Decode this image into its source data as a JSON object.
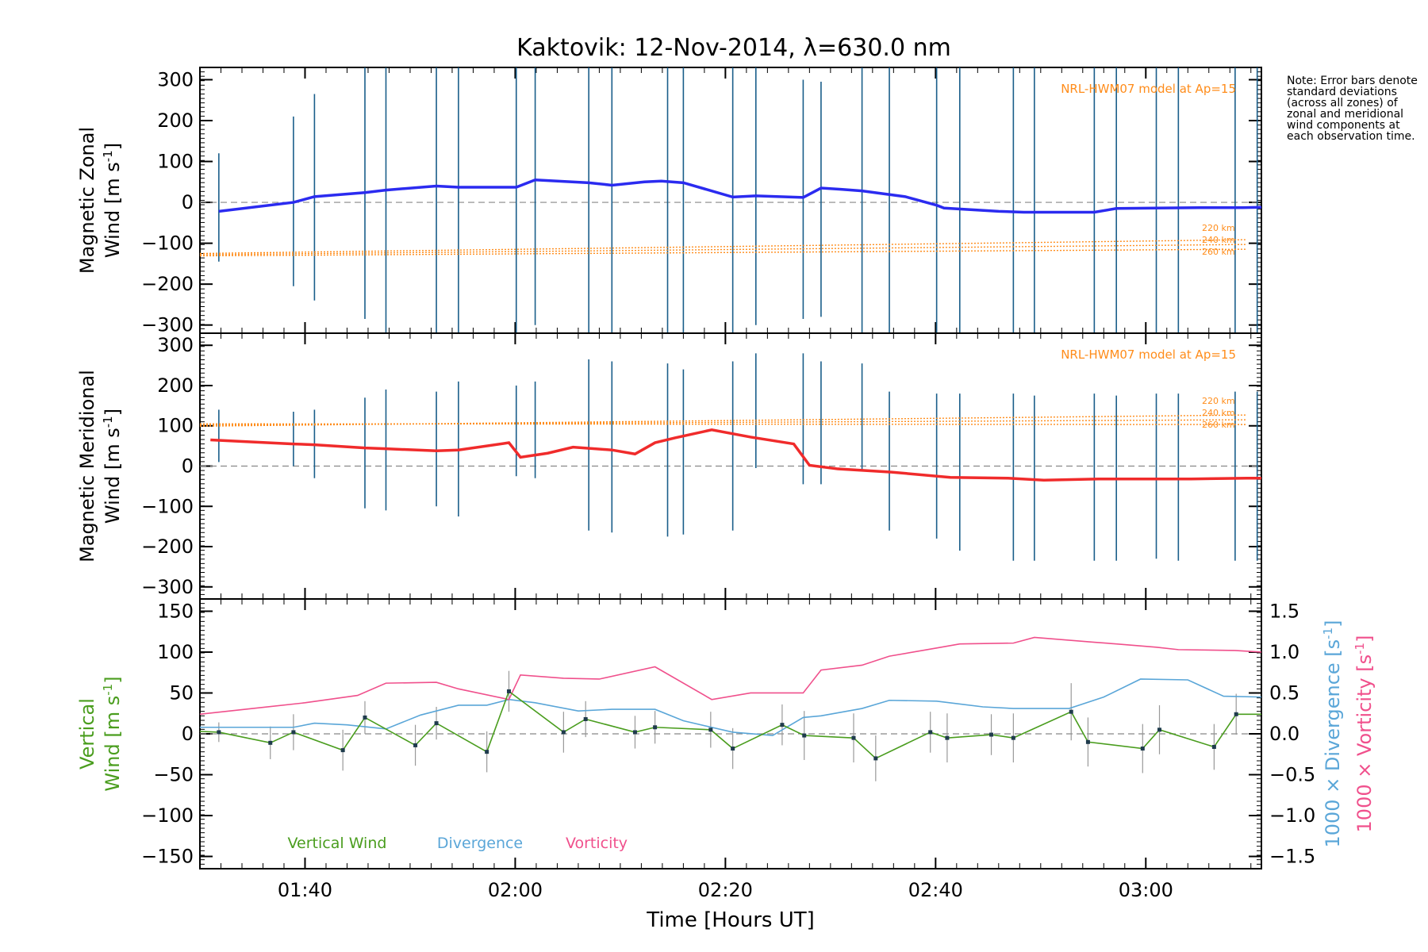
{
  "title": "Kaktovik: 12-Nov-2014, λ=630.0 nm",
  "note": "Note: Error bars denote standard deviations (across all zones) of zonal and meridional wind components at each observation time.",
  "colors": {
    "zonal": "#2b2bf0",
    "meridional": "#f02b2b",
    "model": "#ff8c1a",
    "vertical": "#4a9d1e",
    "divergence": "#5aa6d8",
    "vorticity": "#f0508c",
    "zero_line": "#888888",
    "error_bar": "#1a5e8a"
  },
  "xaxis": {
    "label": "Time [Hours UT]",
    "ticks": [
      "01:40",
      "02:00",
      "02:20",
      "02:40",
      "03:00"
    ],
    "tick_values": [
      100,
      120,
      140,
      160,
      180
    ],
    "xlim": [
      90,
      191
    ]
  },
  "chart_data": [
    {
      "type": "line",
      "panel": "zonal",
      "ylabel_line1": "Magnetic Zonal",
      "ylabel_line2": "Wind [m s",
      "ylabel_sup": "-1",
      "ylabel_close": "]",
      "ylim": [
        -320,
        330
      ],
      "yticks": [
        300,
        200,
        100,
        0,
        -100,
        -200,
        -300
      ],
      "model_label": "NRL-HWM07 model at Ap=15",
      "model_heights": [
        "220 km",
        "240 km",
        "260 km"
      ],
      "model_start": -125,
      "model_end": -103,
      "x": [
        91.8,
        98.9,
        100.9,
        105.7,
        107.7,
        112.5,
        114.6,
        120.1,
        121.9,
        127.0,
        129.2,
        132.3,
        133.9,
        136.0,
        140.7,
        142.9,
        147.4,
        149.1,
        151.0,
        153.0,
        157.1,
        160.1,
        160.8,
        166.0,
        168.4,
        175.1,
        177.2,
        181.0,
        185.1,
        189.2,
        191.0
      ],
      "values": [
        -22,
        0,
        14,
        24,
        30,
        40,
        37,
        37,
        55,
        48,
        42,
        50,
        52,
        48,
        13,
        16,
        12,
        35,
        32,
        28,
        14,
        -7,
        -14,
        -22,
        -24,
        -24,
        -15,
        -14,
        -13,
        -13,
        -12
      ],
      "error_x": [
        91.8,
        98.9,
        100.9,
        105.7,
        107.7,
        112.5,
        114.6,
        120.1,
        121.9,
        127.0,
        129.2,
        134.5,
        136.0,
        140.7,
        142.9,
        147.4,
        149.1,
        153.0,
        155.6,
        160.1,
        162.3,
        167.4,
        169.4,
        175.1,
        177.2,
        181.0,
        183.1,
        188.5,
        190.6
      ],
      "error_lo": [
        -145,
        -205,
        -240,
        -285,
        -330,
        -330,
        -330,
        -320,
        -300,
        -330,
        -330,
        -330,
        -330,
        -330,
        -300,
        -285,
        -280,
        -330,
        -330,
        -330,
        -330,
        -330,
        -330,
        -330,
        -330,
        -330,
        -330,
        -330,
        -330
      ],
      "error_hi": [
        120,
        210,
        265,
        330,
        330,
        330,
        330,
        330,
        330,
        330,
        330,
        330,
        330,
        330,
        330,
        300,
        295,
        330,
        330,
        330,
        330,
        330,
        330,
        330,
        330,
        330,
        330,
        330,
        330
      ]
    },
    {
      "type": "line",
      "panel": "meridional",
      "ylabel_line1": "Magnetic Meridional",
      "ylabel_line2": "Wind [m s",
      "ylabel_sup": "-1",
      "ylabel_close": "]",
      "ylim": [
        -330,
        330
      ],
      "yticks": [
        300,
        200,
        100,
        0,
        -100,
        -200,
        -300
      ],
      "model_label": "NRL-HWM07 model at Ap=15",
      "model_heights": [
        "220 km",
        "240 km",
        "260 km"
      ],
      "model_start": 105,
      "model_end": 115,
      "x": [
        91.0,
        98.9,
        100.9,
        105.7,
        107.7,
        112.5,
        114.6,
        119.4,
        120.5,
        123.1,
        125.5,
        129.2,
        131.4,
        133.3,
        135.2,
        138.7,
        142.4,
        146.5,
        148.0,
        150.7,
        155.8,
        161.4,
        166.9,
        170.3,
        175.5,
        178.2,
        184.3,
        189.6,
        191.0
      ],
      "values": [
        65,
        55,
        53,
        45,
        43,
        38,
        40,
        58,
        22,
        32,
        47,
        40,
        30,
        58,
        70,
        90,
        72,
        55,
        2,
        -7,
        -15,
        -28,
        -30,
        -35,
        -32,
        -32,
        -32,
        -30,
        -30
      ],
      "error_x": [
        91.8,
        98.9,
        100.9,
        105.7,
        107.7,
        112.5,
        114.6,
        120.1,
        121.9,
        127.0,
        129.2,
        134.5,
        136.0,
        140.7,
        142.9,
        147.4,
        149.1,
        153.0,
        155.6,
        160.1,
        162.3,
        167.4,
        169.4,
        175.1,
        177.2,
        181.0,
        183.1,
        188.5,
        190.6
      ],
      "error_lo": [
        10,
        0,
        -30,
        -105,
        -110,
        -100,
        -125,
        -25,
        -30,
        -160,
        -165,
        -175,
        -170,
        -160,
        -5,
        -45,
        -45,
        -10,
        -160,
        -180,
        -210,
        -235,
        -235,
        -235,
        -235,
        -230,
        -235,
        -235,
        -235
      ],
      "error_hi": [
        140,
        135,
        140,
        170,
        190,
        185,
        210,
        200,
        210,
        265,
        260,
        255,
        240,
        260,
        280,
        280,
        260,
        255,
        185,
        180,
        180,
        180,
        175,
        180,
        175,
        180,
        180,
        185,
        185
      ]
    },
    {
      "type": "line",
      "panel": "vertical",
      "ylabel_line1": "Vertical",
      "ylabel_line2": "Wind [m s",
      "ylabel_sup": "-1",
      "ylabel_close": "]",
      "right_ylabel_div": "1000 × Divergence [s",
      "right_ylabel_vor": "1000 × Vorticity [s",
      "right_ylabel_sup": "-1",
      "right_ylabel_close": "]",
      "ylim": [
        -165,
        165
      ],
      "yticks": [
        150,
        100,
        50,
        0,
        -50,
        -100,
        -150
      ],
      "y2lim": [
        -1.65,
        1.65
      ],
      "y2ticks": [
        "1.5",
        "1.0",
        "0.5",
        "0.0",
        "−0.5",
        "−1.0",
        "−1.5"
      ],
      "y2tick_values": [
        1.5,
        1.0,
        0.5,
        0.0,
        -0.5,
        -1.0,
        -1.5
      ],
      "legend": [
        "Vertical Wind",
        "Divergence",
        "Vorticity"
      ],
      "vertical": {
        "x": [
          90.0,
          91.8,
          96.7,
          98.9,
          103.6,
          105.7,
          110.5,
          112.5,
          117.3,
          119.4,
          124.6,
          126.7,
          131.4,
          133.3,
          138.6,
          140.7,
          145.4,
          147.5,
          152.2,
          154.3,
          159.5,
          161.1,
          165.3,
          167.4,
          172.9,
          174.5,
          179.7,
          181.3,
          186.5,
          188.6,
          191.0
        ],
        "values": [
          3,
          2,
          -11,
          2,
          -20,
          20,
          -14,
          13,
          -22,
          52,
          2,
          18,
          2,
          8,
          5,
          -18,
          11,
          -2,
          -5,
          -30,
          2,
          -5,
          -1,
          -5,
          27,
          -10,
          -18,
          5,
          -16,
          24,
          24
        ],
        "err": [
          12,
          12,
          20,
          22,
          25,
          20,
          25,
          20,
          25,
          25,
          25,
          22,
          20,
          20,
          22,
          25,
          25,
          30,
          30,
          28,
          25,
          30,
          25,
          30,
          35,
          30,
          30,
          30,
          28,
          25,
          25
        ]
      },
      "divergence": {
        "x": [
          90.0,
          95.0,
          98.9,
          100.9,
          104.0,
          107.7,
          111.0,
          114.6,
          117.3,
          119.4,
          121.9,
          126.0,
          129.2,
          133.3,
          136.0,
          140.7,
          144.5,
          147.4,
          149.1,
          153.0,
          155.6,
          160.1,
          164.5,
          167.4,
          172.7,
          176.0,
          179.5,
          184.0,
          187.4,
          191.0
        ],
        "values": [
          0.08,
          0.08,
          0.08,
          0.13,
          0.11,
          0.06,
          0.23,
          0.35,
          0.35,
          0.42,
          0.38,
          0.28,
          0.3,
          0.3,
          0.16,
          0.02,
          -0.02,
          0.2,
          0.22,
          0.31,
          0.41,
          0.4,
          0.33,
          0.31,
          0.31,
          0.45,
          0.67,
          0.66,
          0.46,
          0.45
        ]
      },
      "vorticity": {
        "x": [
          90.0,
          95.0,
          100.0,
          105.0,
          107.7,
          112.5,
          114.6,
          119.4,
          120.5,
          124.6,
          128.0,
          133.3,
          138.7,
          142.4,
          147.4,
          149.1,
          153.0,
          155.6,
          160.1,
          162.3,
          167.4,
          169.4,
          175.1,
          177.2,
          181.0,
          183.1,
          188.5,
          191.0
        ],
        "values": [
          0.24,
          0.31,
          0.38,
          0.47,
          0.62,
          0.63,
          0.55,
          0.42,
          0.72,
          0.68,
          0.67,
          0.82,
          0.42,
          0.5,
          0.5,
          0.78,
          0.84,
          0.95,
          1.05,
          1.1,
          1.11,
          1.18,
          1.12,
          1.1,
          1.06,
          1.03,
          1.02,
          1.0
        ]
      }
    }
  ]
}
